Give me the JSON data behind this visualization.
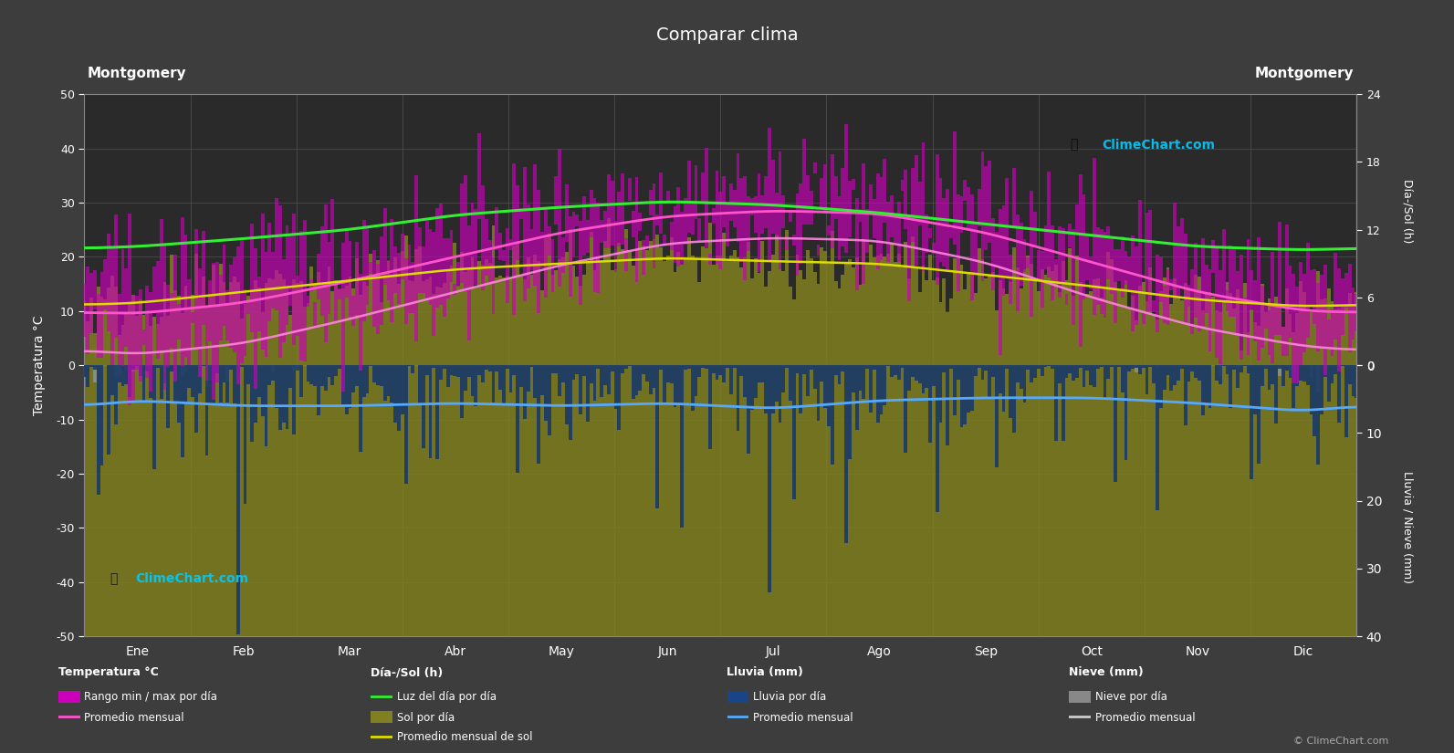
{
  "title": "Comparar clima",
  "city_left": "Montgomery",
  "city_right": "Montgomery",
  "background_color": "#3d3d3d",
  "plot_bg_color": "#2a2a2a",
  "months": [
    "Ene",
    "Feb",
    "Mar",
    "Abr",
    "May",
    "Jun",
    "Jul",
    "Ago",
    "Sep",
    "Oct",
    "Nov",
    "Dic"
  ],
  "temp_ylim": [
    -50,
    50
  ],
  "temp_yticks": [
    -50,
    -40,
    -30,
    -20,
    -10,
    0,
    10,
    20,
    30,
    40,
    50
  ],
  "sun_yticks_vals": [
    0,
    6,
    12,
    18,
    24
  ],
  "rain_yticks_vals": [
    0,
    10,
    20,
    30,
    40
  ],
  "ylabel_left": "Temperatura °C",
  "ylabel_right_top": "Día-/Sol (h)",
  "ylabel_right_bottom": "Lluvia / Nieve (mm)",
  "temp_avg_monthly": [
    9.5,
    11.5,
    15.5,
    20.0,
    24.5,
    27.5,
    28.5,
    28.0,
    24.5,
    19.0,
    13.5,
    10.0
  ],
  "temp_min_monthly": [
    2.0,
    4.0,
    8.5,
    13.5,
    18.5,
    22.5,
    23.5,
    23.0,
    19.0,
    12.5,
    7.0,
    3.5
  ],
  "temp_max_monthly": [
    17.0,
    19.5,
    23.0,
    26.5,
    30.5,
    32.5,
    33.5,
    33.0,
    30.0,
    25.5,
    20.0,
    17.0
  ],
  "daylight_monthly": [
    10.5,
    11.2,
    12.0,
    13.3,
    14.0,
    14.5,
    14.2,
    13.5,
    12.5,
    11.5,
    10.5,
    10.2
  ],
  "sunshine_monthly": [
    5.5,
    6.5,
    7.5,
    8.5,
    9.0,
    9.5,
    9.2,
    9.0,
    8.0,
    7.0,
    5.8,
    5.2
  ],
  "rain_monthly_mm": [
    3.5,
    4.5,
    5.5,
    4.0,
    4.0,
    4.0,
    5.5,
    4.0,
    3.5,
    2.5,
    3.5,
    4.0
  ],
  "rain_avg_line": [
    -6.5,
    -7.5,
    -7.5,
    -7.0,
    -7.5,
    -7.0,
    -8.0,
    -6.5,
    -6.0,
    -6.0,
    -7.0,
    -8.5
  ],
  "snow_monthly_mm": [
    0.5,
    0.3,
    0.0,
    0.0,
    0.0,
    0.0,
    0.0,
    0.0,
    0.0,
    0.0,
    0.2,
    0.4
  ],
  "watermark_text": "© ClimeChart.com",
  "noise_seed": 42,
  "temp_noise": 5.0,
  "rain_noise_scale": 1.2,
  "sun_to_temp_scale": 50.0,
  "rain_to_temp_scale": 1.25
}
